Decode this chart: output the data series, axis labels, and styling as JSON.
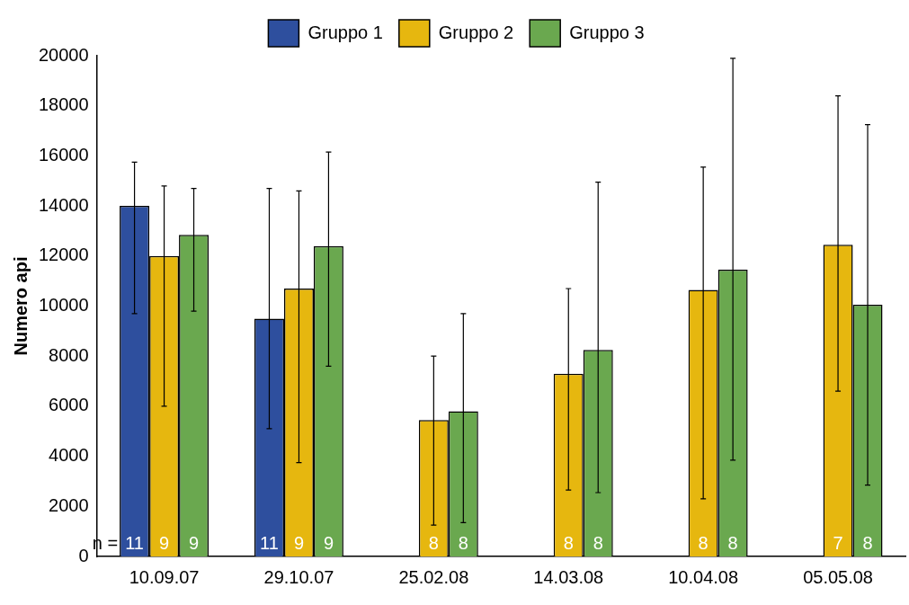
{
  "chart_data": {
    "type": "bar",
    "ylabel": "Numero api",
    "categories": [
      "10.09.07",
      "29.10.07",
      "25.02.08",
      "14.03.08",
      "10.04.08",
      "05.05.08"
    ],
    "series": [
      {
        "name": "Gruppo 1",
        "color": "#2e4f9e",
        "values": [
          14000,
          9500,
          null,
          null,
          null,
          null
        ],
        "errors": [
          [
            9700,
            15750
          ],
          [
            5100,
            14700
          ],
          null,
          null,
          null,
          null
        ]
      },
      {
        "name": "Gruppo 2",
        "color": "#e6b70f",
        "values": [
          12000,
          10700,
          5450,
          7300,
          10650,
          12450
        ],
        "errors": [
          [
            6000,
            14800
          ],
          [
            3750,
            14600
          ],
          [
            1250,
            8000
          ],
          [
            2650,
            10700
          ],
          [
            2300,
            15550
          ],
          [
            6600,
            18400
          ]
        ]
      },
      {
        "name": "Gruppo 3",
        "color": "#6aa84f",
        "values": [
          12850,
          12400,
          5800,
          8250,
          11450,
          10050
        ],
        "errors": [
          [
            9800,
            14700
          ],
          [
            7600,
            16150
          ],
          [
            1350,
            9700
          ],
          [
            2550,
            14950
          ],
          [
            3850,
            19900
          ],
          [
            2850,
            17250
          ]
        ]
      }
    ],
    "ylim": [
      0,
      20000
    ],
    "yticks": [
      0,
      2000,
      4000,
      6000,
      8000,
      10000,
      12000,
      14000,
      16000,
      18000,
      20000
    ],
    "grid": false,
    "legend": "top",
    "annotations": [
      "n =",
      {
        "text": "11",
        "x": "10.09.07",
        "y": 0
      },
      {
        "text": "9",
        "x": "10.09.07",
        "y": 0
      },
      {
        "text": "9",
        "x": "10.09.07",
        "y": 0
      },
      {
        "text": "11",
        "x": "29.10.07",
        "y": 0
      },
      {
        "text": "9",
        "x": "29.10.07",
        "y": 0
      },
      {
        "text": "9",
        "x": "29.10.07",
        "y": 0
      },
      {
        "text": "8",
        "x": "25.02.08",
        "y": 0
      },
      {
        "text": "8",
        "x": "25.02.08",
        "y": 0
      },
      {
        "text": "8",
        "x": "14.03.08",
        "y": 0
      },
      {
        "text": "8",
        "x": "14.03.08",
        "y": 0
      },
      {
        "text": "8",
        "x": "10.04.08",
        "y": 0
      },
      {
        "text": "8",
        "x": "10.04.08",
        "y": 0
      },
      {
        "text": "7",
        "x": "05.05.08",
        "y": 0
      },
      {
        "text": "8",
        "x": "05.05.08",
        "y": 0
      }
    ]
  }
}
